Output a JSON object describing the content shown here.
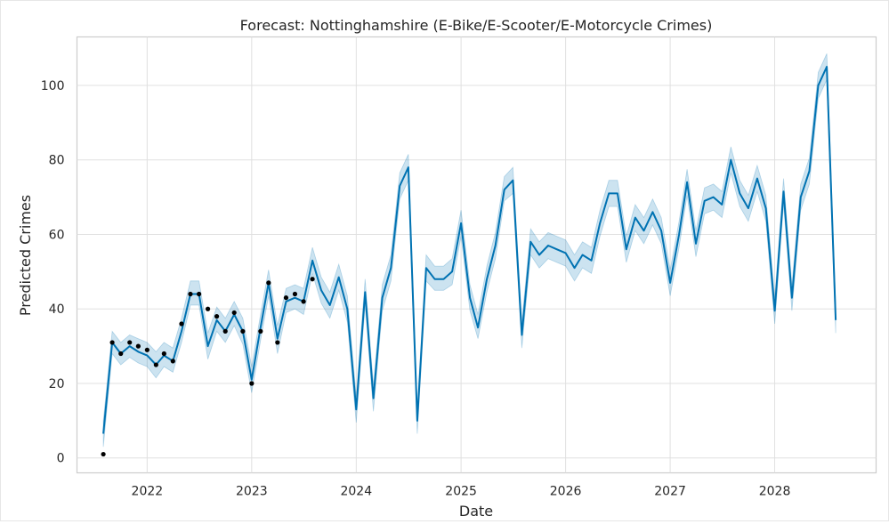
{
  "chart_data": {
    "type": "line",
    "title": "Forecast: Nottinghamshire (E-Bike/E-Scooter/E-Motorcycle Crimes)",
    "xlabel": "Date",
    "ylabel": "Predicted Crimes",
    "xlim": [
      "2021-05-01",
      "2028-12-20"
    ],
    "ylim": [
      -4,
      113
    ],
    "x_ticks": [
      "2022",
      "2023",
      "2024",
      "2025",
      "2026",
      "2027",
      "2028"
    ],
    "y_ticks": [
      0,
      20,
      40,
      60,
      80,
      100
    ],
    "grid": true,
    "colors": {
      "forecast": "#0072B2",
      "band": "#0072B2",
      "observed": "#000000",
      "grid": "#e0e0e0",
      "frame": "#cccccc"
    },
    "observed": {
      "x": [
        "2021-08-01",
        "2021-09-01",
        "2021-10-01",
        "2021-11-01",
        "2021-12-01",
        "2022-01-01",
        "2022-02-01",
        "2022-03-01",
        "2022-04-01",
        "2022-05-01",
        "2022-06-01",
        "2022-07-01",
        "2022-08-01",
        "2022-09-01",
        "2022-10-01",
        "2022-11-01",
        "2022-12-01",
        "2023-01-01",
        "2023-02-01",
        "2023-03-01",
        "2023-04-01",
        "2023-05-01",
        "2023-06-01",
        "2023-07-01",
        "2023-08-01"
      ],
      "y": [
        1,
        31,
        28,
        31,
        30,
        29,
        25,
        28,
        26,
        36,
        44,
        44,
        40,
        38,
        34,
        39,
        34,
        20,
        34,
        47,
        31,
        43,
        44,
        42,
        48
      ]
    },
    "forecast": {
      "x": [
        "2021-08-01",
        "2021-09-01",
        "2021-10-01",
        "2021-11-01",
        "2021-12-01",
        "2022-01-01",
        "2022-02-01",
        "2022-03-01",
        "2022-04-01",
        "2022-05-01",
        "2022-06-01",
        "2022-07-01",
        "2022-08-01",
        "2022-09-01",
        "2022-10-01",
        "2022-11-01",
        "2022-12-01",
        "2023-01-01",
        "2023-02-01",
        "2023-03-01",
        "2023-04-01",
        "2023-05-01",
        "2023-06-01",
        "2023-07-01",
        "2023-08-01",
        "2023-09-01",
        "2023-10-01",
        "2023-11-01",
        "2023-12-01",
        "2024-01-01",
        "2024-02-01",
        "2024-03-01",
        "2024-04-01",
        "2024-05-01",
        "2024-06-01",
        "2024-07-01",
        "2024-08-01",
        "2024-09-01",
        "2024-10-01",
        "2024-11-01",
        "2024-12-01",
        "2025-01-01",
        "2025-02-01",
        "2025-03-01",
        "2025-04-01",
        "2025-05-01",
        "2025-06-01",
        "2025-07-01",
        "2025-08-01",
        "2025-09-01",
        "2025-10-01",
        "2025-11-01",
        "2025-12-01",
        "2026-01-01",
        "2026-02-01",
        "2026-03-01",
        "2026-04-01",
        "2026-05-01",
        "2026-06-01",
        "2026-07-01",
        "2026-08-01",
        "2026-09-01",
        "2026-10-01",
        "2026-11-01",
        "2026-12-01",
        "2027-01-01",
        "2027-02-01",
        "2027-03-01",
        "2027-04-01",
        "2027-05-01",
        "2027-06-01",
        "2027-07-01",
        "2027-08-01",
        "2027-09-01",
        "2027-10-01",
        "2027-11-01",
        "2027-12-01",
        "2028-01-01",
        "2028-02-01",
        "2028-03-01",
        "2028-04-01",
        "2028-05-01",
        "2028-06-01",
        "2028-07-01",
        "2028-08-01"
      ],
      "yhat": [
        6.5,
        31,
        28,
        30,
        28.5,
        27.5,
        25,
        27.5,
        26,
        34,
        44,
        44,
        30,
        37,
        34,
        38.5,
        34,
        21,
        35,
        47,
        32,
        42,
        43,
        42,
        53,
        45,
        41,
        48.5,
        40,
        13,
        44.5,
        16,
        43,
        51,
        73,
        78,
        10,
        51,
        48,
        48,
        50,
        63,
        43,
        35,
        48,
        57,
        72,
        74.5,
        33,
        58,
        54.5,
        57,
        56,
        55,
        51,
        54.5,
        53,
        63,
        71,
        71,
        56,
        64.5,
        61,
        66,
        61,
        47,
        60,
        74,
        57.5,
        69,
        70,
        68,
        80,
        71,
        67,
        75,
        67,
        39.5,
        71.5,
        43,
        70,
        77,
        100,
        105,
        37
      ],
      "lower": [
        3,
        28,
        25,
        27,
        25.5,
        24.5,
        21.5,
        24.5,
        23,
        31,
        41,
        41,
        26.5,
        34,
        31,
        35.5,
        30.5,
        17.5,
        31.5,
        43.5,
        28,
        39,
        40,
        38.5,
        49.5,
        41.5,
        37.5,
        45,
        36.5,
        9.5,
        41,
        12.5,
        39.5,
        47.5,
        69.5,
        74.5,
        6.5,
        47.5,
        45,
        45,
        46.5,
        59.5,
        39.5,
        32,
        44.5,
        53.5,
        69,
        71,
        29.5,
        54.5,
        51,
        53.5,
        52.5,
        51.5,
        47.5,
        51,
        49.5,
        59.5,
        67.5,
        67.5,
        52.5,
        61,
        57.5,
        62.5,
        57.5,
        43.5,
        56.5,
        70.5,
        54,
        65.5,
        66.5,
        64.5,
        76.5,
        67.5,
        63.5,
        71.5,
        63.5,
        36,
        68,
        39.5,
        66.5,
        73.5,
        96.5,
        101.5,
        33.5
      ],
      "upper": [
        10,
        34,
        31,
        33,
        32,
        31,
        28.5,
        31,
        29.5,
        37.5,
        47.5,
        47.5,
        33.5,
        40.5,
        37.5,
        42,
        37.5,
        24.5,
        38.5,
        50.5,
        35.5,
        45.5,
        46.5,
        45.5,
        56.5,
        48.5,
        44.5,
        52,
        43.5,
        16.5,
        48,
        19.5,
        46.5,
        54.5,
        76.5,
        81.5,
        13.5,
        54.5,
        51.5,
        51.5,
        53.5,
        66.5,
        46.5,
        38.5,
        51.5,
        60.5,
        75.5,
        78,
        36.5,
        61.5,
        58,
        60.5,
        59.5,
        58.5,
        54.5,
        58,
        56.5,
        66.5,
        74.5,
        74.5,
        59.5,
        68,
        64.5,
        69.5,
        64.5,
        50.5,
        63.5,
        77.5,
        61,
        72.5,
        73.5,
        71.5,
        83.5,
        74.5,
        70.5,
        78.5,
        70.5,
        43,
        75,
        46.5,
        73.5,
        80.5,
        103.5,
        108.5,
        40.5
      ]
    }
  }
}
